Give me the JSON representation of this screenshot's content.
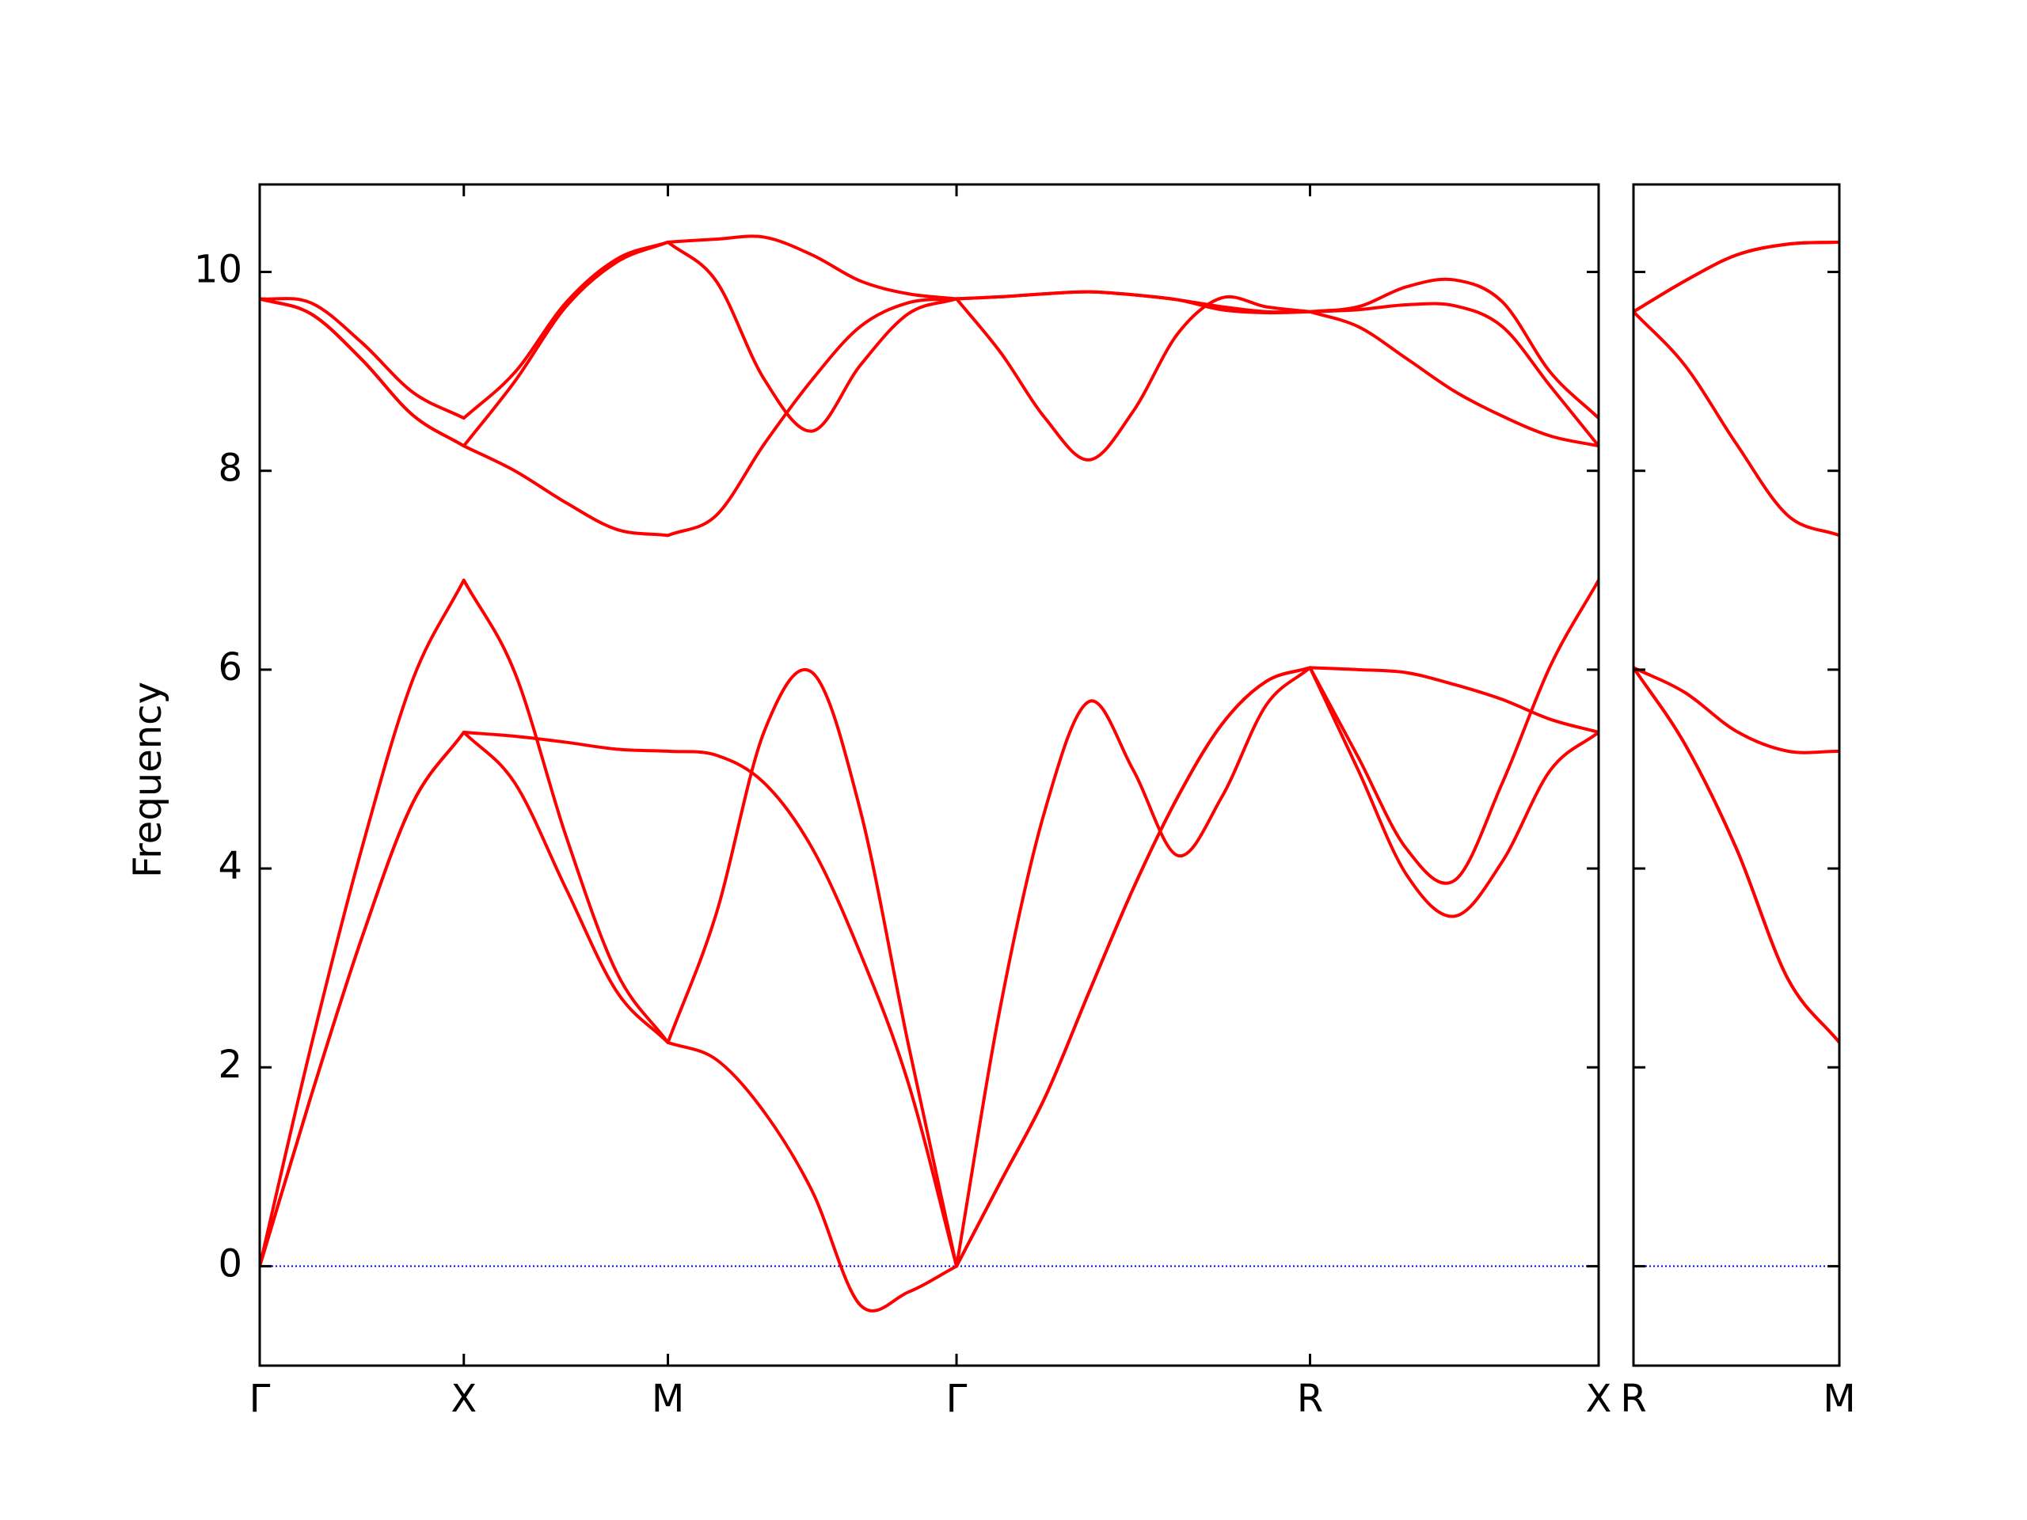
{
  "chart_data": [
    {
      "type": "line",
      "ylabel": "Frequency",
      "x": [
        0,
        0.125,
        0.25,
        0.375,
        0.5,
        0.625,
        0.75,
        0.875,
        1.0,
        1.118,
        1.236,
        1.354,
        1.471,
        1.589,
        1.707,
        1.815,
        1.924,
        2.032,
        2.14,
        2.249,
        2.357,
        2.465,
        2.573,
        2.691,
        2.809,
        2.927,
        3.044,
        3.162,
        3.28
      ],
      "xlim": [
        0,
        3.28
      ],
      "xticks": [
        {
          "value": 0,
          "label": "Γ"
        },
        {
          "value": 0.5,
          "label": "X"
        },
        {
          "value": 1.0,
          "label": "M"
        },
        {
          "value": 1.707,
          "label": "Γ"
        },
        {
          "value": 2.573,
          "label": "R"
        },
        {
          "value": 3.28,
          "label": "X"
        }
      ],
      "ylim": [
        -1,
        10.88
      ],
      "yticks": [
        0,
        2,
        4,
        6,
        8,
        10
      ],
      "show_ytick_labels": true,
      "zero_line": 0,
      "zero_line_color": "blue",
      "series": [
        {
          "color": "red",
          "values": [
            0,
            1.7,
            3.3,
            4.66,
            5.37,
            4.86,
            3.8,
            2.76,
            2.25,
            2.08,
            1.55,
            0.75,
            -0.39,
            -0.26,
            0,
            0.85,
            1.7,
            2.76,
            3.8,
            4.72,
            5.45,
            5.88,
            6.02,
            4.99,
            3.94,
            3.52,
            4.07,
            4.99,
            5.37
          ]
        },
        {
          "color": "red",
          "values": [
            0,
            1.7,
            3.3,
            4.66,
            5.37,
            5.33,
            5.27,
            5.2,
            5.18,
            5.14,
            4.86,
            4.2,
            3.15,
            1.84,
            0,
            0.85,
            1.7,
            2.76,
            3.8,
            4.72,
            5.45,
            5.88,
            6.02,
            6.0,
            5.97,
            5.85,
            5.7,
            5.5,
            5.37
          ]
        },
        {
          "color": "red",
          "values": [
            0,
            2.2,
            4.2,
            5.9,
            6.9,
            5.97,
            4.33,
            2.95,
            2.25,
            3.54,
            5.38,
            5.97,
            4.59,
            2.23,
            0,
            2.62,
            4.59,
            5.68,
            4.99,
            4.13,
            4.72,
            5.64,
            6.02,
            5.12,
            4.2,
            3.88,
            4.86,
            6.04,
            6.9
          ]
        },
        {
          "color": "red",
          "values": [
            9.73,
            9.58,
            9.12,
            8.56,
            8.25,
            8.0,
            7.68,
            7.41,
            7.35,
            7.55,
            8.27,
            8.92,
            9.45,
            9.69,
            9.73,
            9.19,
            8.53,
            8.11,
            8.6,
            9.38,
            9.74,
            9.65,
            9.6,
            9.45,
            9.13,
            8.8,
            8.55,
            8.35,
            8.25
          ]
        },
        {
          "color": "red",
          "values": [
            9.73,
            9.58,
            9.12,
            8.56,
            8.25,
            8.9,
            9.65,
            10.1,
            10.3,
            9.91,
            8.92,
            8.4,
            9.06,
            9.58,
            9.73,
            9.75,
            9.78,
            9.8,
            9.77,
            9.72,
            9.65,
            9.6,
            9.6,
            9.62,
            9.67,
            9.66,
            9.45,
            8.85,
            8.25
          ]
        },
        {
          "color": "red",
          "values": [
            9.73,
            9.69,
            9.29,
            8.79,
            8.53,
            8.99,
            9.69,
            10.13,
            10.3,
            10.33,
            10.35,
            10.17,
            9.91,
            9.78,
            9.73,
            9.75,
            9.78,
            9.8,
            9.77,
            9.72,
            9.62,
            9.59,
            9.6,
            9.65,
            9.85,
            9.92,
            9.7,
            8.99,
            8.53
          ]
        }
      ]
    },
    {
      "type": "line",
      "x": [
        3.28,
        3.405,
        3.53,
        3.655,
        3.78
      ],
      "xlim": [
        3.28,
        3.78
      ],
      "xticks": [
        {
          "value": 3.28,
          "label": "R"
        },
        {
          "value": 3.78,
          "label": "M"
        }
      ],
      "ylim": [
        -1,
        10.88
      ],
      "yticks": [
        0,
        2,
        4,
        6,
        8,
        10
      ],
      "show_ytick_labels": false,
      "zero_line": 0,
      "zero_line_color": "blue",
      "series": [
        {
          "color": "red",
          "values": [
            6.02,
            5.25,
            4.2,
            2.89,
            2.25
          ]
        },
        {
          "color": "red",
          "values": [
            6.02,
            5.25,
            4.2,
            2.89,
            2.25
          ]
        },
        {
          "color": "red",
          "values": [
            6.02,
            5.77,
            5.38,
            5.18,
            5.18
          ]
        },
        {
          "color": "red",
          "values": [
            9.6,
            9.06,
            8.27,
            7.55,
            7.35
          ]
        },
        {
          "color": "red",
          "values": [
            9.6,
            9.91,
            10.17,
            10.28,
            10.3
          ]
        },
        {
          "color": "red",
          "values": [
            9.6,
            9.91,
            10.17,
            10.28,
            10.3
          ]
        }
      ]
    }
  ]
}
